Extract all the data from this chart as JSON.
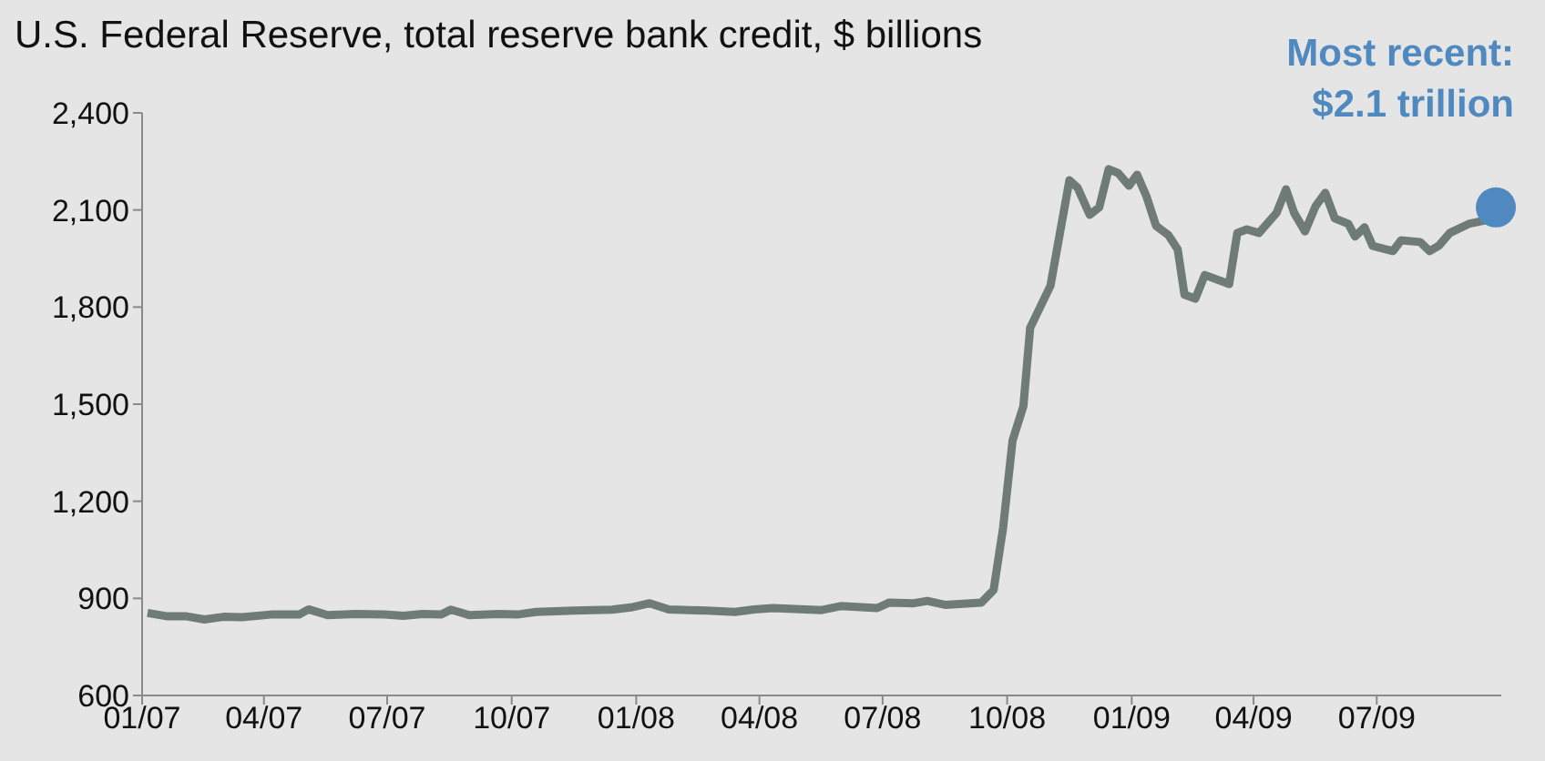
{
  "chart_data": {
    "type": "line",
    "title": "U.S. Federal Reserve, total reserve bank credit, $ billions",
    "xlim": [
      "2007-01-01",
      "2009-10-01"
    ],
    "xticks": [
      {
        "value": "2007-01-01",
        "label": "01/07"
      },
      {
        "value": "2007-04-01",
        "label": "04/07"
      },
      {
        "value": "2007-07-01",
        "label": "07/07"
      },
      {
        "value": "2007-10-01",
        "label": "10/07"
      },
      {
        "value": "2008-01-01",
        "label": "01/08"
      },
      {
        "value": "2008-04-01",
        "label": "04/08"
      },
      {
        "value": "2008-07-01",
        "label": "07/08"
      },
      {
        "value": "2008-10-01",
        "label": "10/08"
      },
      {
        "value": "2009-01-01",
        "label": "01/09"
      },
      {
        "value": "2009-04-01",
        "label": "04/09"
      },
      {
        "value": "2009-07-01",
        "label": "07/09"
      }
    ],
    "ylim": [
      600,
      2400
    ],
    "yticks": [
      {
        "value": 600,
        "label": "600"
      },
      {
        "value": 900,
        "label": "900"
      },
      {
        "value": 1200,
        "label": "1,200"
      },
      {
        "value": 1500,
        "label": "1,500"
      },
      {
        "value": 1800,
        "label": "1,800"
      },
      {
        "value": 2100,
        "label": "2,100"
      },
      {
        "value": 2400,
        "label": "2,400"
      }
    ],
    "series": [
      {
        "color": "#6f7b76",
        "x": [
          "2007-01-05",
          "2007-01-19",
          "2007-02-02",
          "2007-02-16",
          "2007-03-02",
          "2007-03-16",
          "2007-04-06",
          "2007-04-27",
          "2007-05-04",
          "2007-05-18",
          "2007-06-08",
          "2007-06-29",
          "2007-07-13",
          "2007-07-27",
          "2007-08-10",
          "2007-08-17",
          "2007-08-31",
          "2007-09-21",
          "2007-10-05",
          "2007-10-19",
          "2007-11-16",
          "2007-12-14",
          "2007-12-28",
          "2008-01-11",
          "2008-01-25",
          "2008-02-22",
          "2008-03-14",
          "2008-03-28",
          "2008-04-11",
          "2008-05-17",
          "2008-05-31",
          "2008-06-27",
          "2008-07-06",
          "2008-07-24",
          "2008-08-03",
          "2008-08-16",
          "2008-09-12",
          "2008-09-21",
          "2008-09-28",
          "2008-10-05",
          "2008-10-13",
          "2008-10-18",
          "2008-11-02",
          "2008-11-16",
          "2008-11-22",
          "2008-12-01",
          "2008-12-08",
          "2008-12-15",
          "2008-12-22",
          "2008-12-30",
          "2009-01-05",
          "2009-01-12",
          "2009-01-19",
          "2009-01-28",
          "2009-02-04",
          "2009-02-09",
          "2009-02-17",
          "2009-02-24",
          "2009-03-14",
          "2009-03-20",
          "2009-03-27",
          "2009-04-05",
          "2009-04-18",
          "2009-04-25",
          "2009-05-01",
          "2009-05-09",
          "2009-05-17",
          "2009-05-24",
          "2009-05-31",
          "2009-06-10",
          "2009-06-15",
          "2009-06-22",
          "2009-06-28",
          "2009-07-13",
          "2009-07-19",
          "2009-08-02",
          "2009-08-09",
          "2009-08-16",
          "2009-08-24",
          "2009-09-07",
          "2009-09-19"
        ],
        "values": [
          855,
          845,
          845,
          835,
          843,
          842,
          850,
          850,
          866,
          848,
          852,
          850,
          846,
          852,
          850,
          865,
          848,
          852,
          850,
          858,
          862,
          865,
          872,
          885,
          866,
          862,
          858,
          866,
          870,
          864,
          876,
          870,
          887,
          885,
          892,
          880,
          887,
          926,
          1118,
          1388,
          1494,
          1736,
          1866,
          2192,
          2169,
          2085,
          2108,
          2226,
          2214,
          2175,
          2209,
          2141,
          2051,
          2023,
          1978,
          1838,
          1826,
          1899,
          1871,
          2029,
          2040,
          2029,
          2091,
          2164,
          2091,
          2034,
          2113,
          2153,
          2074,
          2057,
          2018,
          2046,
          1989,
          1973,
          2006,
          2001,
          1973,
          1990,
          2029,
          2057,
          2068
        ]
      },
      {
        "type": "scatter",
        "color": "#5089bf",
        "x": [
          "2009-09-27"
        ],
        "values": [
          2108
        ]
      }
    ],
    "annotations": [
      {
        "text": "Most recent:\n$2.1 trillion",
        "x": "2009-09-27",
        "y": 2108
      }
    ]
  }
}
